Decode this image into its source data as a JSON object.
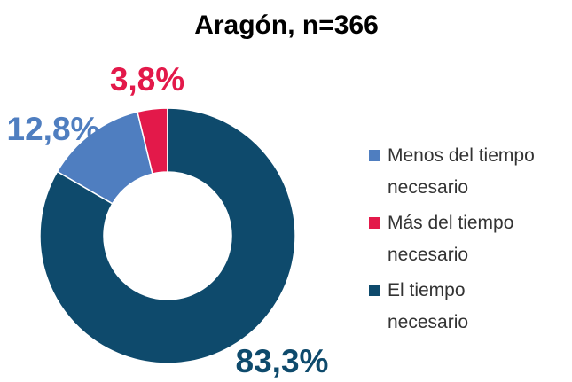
{
  "chart_data": {
    "type": "donut",
    "title": "Aragón, n=366",
    "categories": [
      "Menos del tiempo\nnecesario",
      "Más del tiempo\nnecesario",
      "El tiempo\nnecesario"
    ],
    "values": [
      12.8,
      3.8,
      83.3
    ],
    "value_labels": [
      "12,8%",
      "3,8%",
      "83,3%"
    ],
    "colors": [
      "#4f7ec0",
      "#e3194a",
      "#0e4a6c"
    ],
    "legend": "right"
  }
}
